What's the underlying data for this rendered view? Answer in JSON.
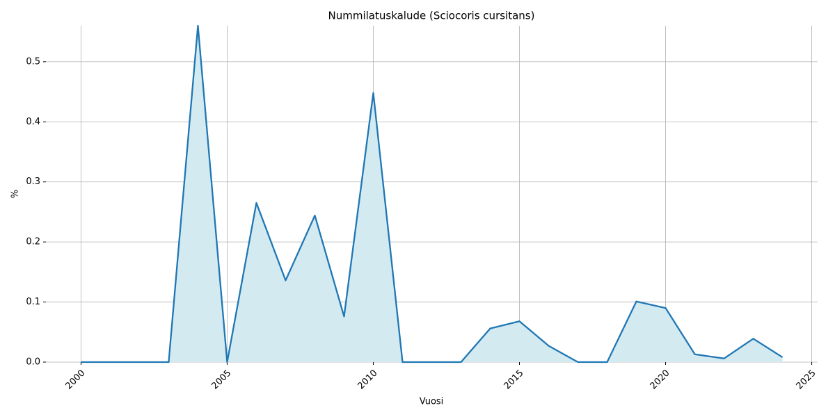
{
  "chart_data": {
    "type": "area",
    "title": "Nummilatuskalude (Sciocoris cursitans)",
    "x_label": "Vuosi",
    "y_label": "%",
    "x": [
      2000,
      2001,
      2002,
      2003,
      2004,
      2005,
      2006,
      2007,
      2008,
      2009,
      2010,
      2011,
      2012,
      2013,
      2014,
      2015,
      2016,
      2017,
      2018,
      2019,
      2020,
      2021,
      2022,
      2023,
      2024
    ],
    "values": [
      0,
      0,
      0,
      0,
      0.56,
      0,
      0.265,
      0.136,
      0.244,
      0.076,
      0.448,
      0,
      0,
      0,
      0.056,
      0.068,
      0.027,
      0,
      0,
      0.101,
      0.09,
      0.013,
      0.006,
      0.039,
      0.008
    ],
    "color": "#1f77b4",
    "fill_color": "#d4eaf1",
    "xlim": [
      1998.8,
      2025.2
    ],
    "xticks": [
      2000,
      2005,
      2010,
      2015,
      2020,
      2025
    ],
    "ylim": [
      0,
      0.56
    ],
    "yticks": [
      {
        "value": 0,
        "label": "0.0"
      },
      0.1,
      0.2,
      0.3,
      0.4,
      0.5
    ],
    "grid": true
  }
}
